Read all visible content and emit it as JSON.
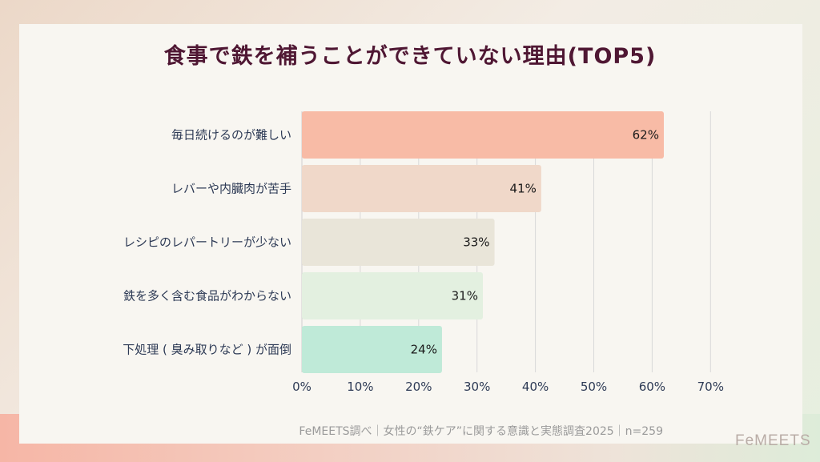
{
  "title": "食事で鉄を補うことができていない理由(TOP5)",
  "chart_data": {
    "type": "bar",
    "orientation": "horizontal",
    "title": "食事で鉄を補うことができていない理由(TOP5)",
    "categories": [
      "毎日続けるのが難しい",
      "レバーや内臓肉が苦手",
      "レシピのレパートリーが少ない",
      "鉄を多く含む食品がわからない",
      "下処理 ( 臭み取りなど ) が面倒"
    ],
    "values": [
      62,
      41,
      33,
      31,
      24
    ],
    "value_labels": [
      "62%",
      "41%",
      "33%",
      "31%",
      "24%"
    ],
    "bar_colors": [
      "#f8bba6",
      "#f0d8c9",
      "#e9e5d9",
      "#e3f0e0",
      "#bfead8"
    ],
    "xlim": [
      0,
      70
    ],
    "ticks": [
      0,
      10,
      20,
      30,
      40,
      50,
      60,
      70
    ],
    "tick_labels": [
      "0%",
      "10%",
      "20%",
      "30%",
      "40%",
      "50%",
      "60%",
      "70%"
    ],
    "grid": true
  },
  "footer": "FeMEETS調べ｜女性の“鉄ケア”に関する意識と実態調査2025｜n=259",
  "logo": "FeMEETS"
}
